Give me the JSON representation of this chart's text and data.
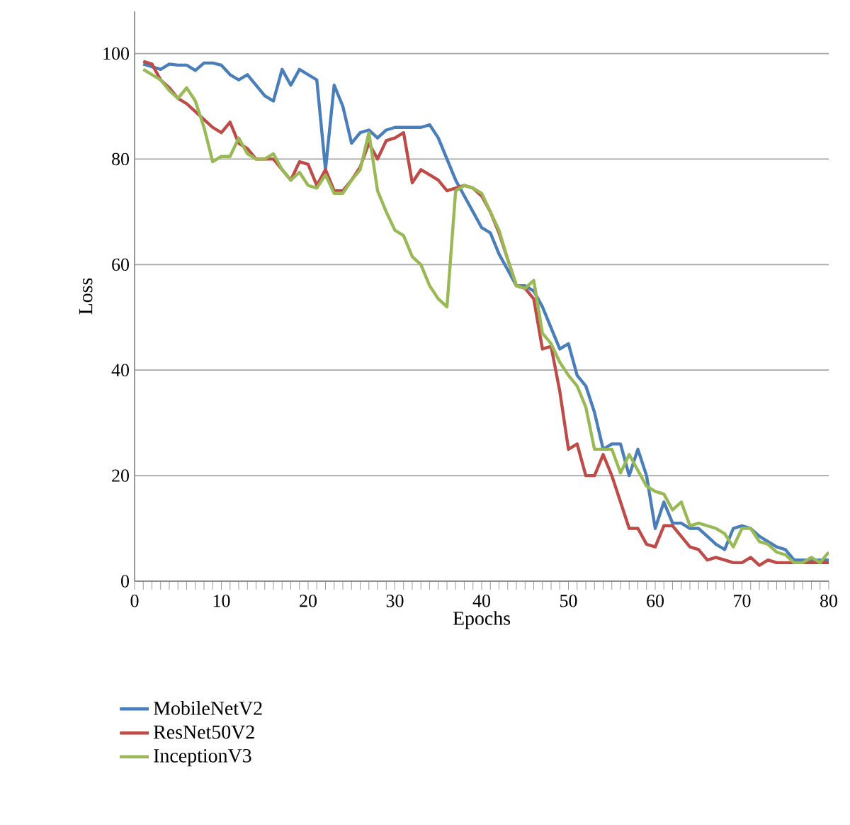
{
  "chart_data": {
    "type": "line",
    "xlabel": "Epochs",
    "ylabel": "Loss",
    "x": [
      1,
      2,
      3,
      4,
      5,
      6,
      7,
      8,
      9,
      10,
      11,
      12,
      13,
      14,
      15,
      16,
      17,
      18,
      19,
      20,
      21,
      22,
      23,
      24,
      25,
      26,
      27,
      28,
      29,
      30,
      31,
      32,
      33,
      34,
      35,
      36,
      37,
      38,
      39,
      40,
      41,
      42,
      43,
      44,
      45,
      46,
      47,
      48,
      49,
      50,
      51,
      52,
      53,
      54,
      55,
      56,
      57,
      58,
      59,
      60,
      61,
      62,
      63,
      64,
      65,
      66,
      67,
      68,
      69,
      70,
      71,
      72,
      73,
      74,
      75,
      76,
      77,
      78,
      79,
      80
    ],
    "series": [
      {
        "name": "MobileNetV2",
        "color": "#4a7ebb",
        "values": [
          98,
          97.5,
          97,
          98,
          97.8,
          97.8,
          96.8,
          98.2,
          98.2,
          97.8,
          96,
          95,
          96,
          94,
          92,
          91,
          97,
          94,
          97,
          96,
          95,
          78,
          94,
          90,
          83,
          85,
          85.5,
          84,
          85.5,
          86,
          86,
          86,
          86,
          86.5,
          84,
          80,
          76,
          73,
          70,
          67,
          66,
          62,
          59,
          56,
          56,
          55,
          52,
          48,
          44,
          45,
          39,
          37,
          32,
          25,
          26,
          26,
          20,
          25,
          20,
          10,
          15,
          11,
          11,
          10,
          10,
          8.5,
          7,
          6,
          10,
          10.5,
          10,
          8.5,
          7.5,
          6.5,
          6,
          4,
          4,
          4,
          4,
          4
        ]
      },
      {
        "name": "ResNet50V2",
        "color": "#be4b48",
        "values": [
          98.5,
          98,
          95,
          93.5,
          91.5,
          90.5,
          89,
          87.5,
          86,
          85,
          87,
          83,
          82,
          80,
          80,
          80,
          78,
          76,
          79.5,
          79,
          75,
          78,
          74,
          74,
          76,
          78.5,
          83,
          80,
          83.5,
          84,
          85,
          75.5,
          78,
          77,
          76,
          74,
          74.5,
          75,
          74.5,
          73,
          70,
          66,
          61,
          56,
          55.5,
          53.5,
          44,
          44.5,
          36,
          25,
          26,
          20,
          20,
          24,
          20,
          15,
          10,
          10,
          7,
          6.5,
          10.5,
          10.5,
          8.5,
          6.5,
          6,
          4,
          4.5,
          4,
          3.5,
          3.5,
          4.5,
          3,
          4,
          3.5,
          3.5,
          3.5,
          3.5,
          3.5,
          3.5,
          3.5
        ]
      },
      {
        "name": "InceptionV3",
        "color": "#98b954",
        "values": [
          97,
          96,
          95,
          93,
          91.5,
          93.5,
          91,
          86,
          79.5,
          80.5,
          80.5,
          84,
          81,
          80,
          80,
          81,
          78,
          76,
          77.5,
          75,
          74.5,
          77,
          73.5,
          73.5,
          76,
          78,
          85,
          74,
          70,
          66.5,
          65.5,
          61.5,
          60,
          56,
          53.5,
          52,
          74,
          75,
          74.5,
          73.5,
          70,
          66.5,
          61,
          56,
          55.5,
          57,
          47,
          45,
          41.5,
          39,
          37,
          33,
          25,
          25,
          25,
          20.5,
          24,
          21,
          18,
          17,
          16.5,
          13.5,
          15,
          10.5,
          11,
          10.5,
          10,
          9,
          6.5,
          10,
          10,
          7.5,
          7,
          5.5,
          5,
          3.5,
          3.5,
          4.5,
          3.5,
          5.5
        ]
      }
    ],
    "xlim": [
      0,
      80
    ],
    "xticks": [
      0,
      10,
      20,
      30,
      40,
      50,
      60,
      70,
      80
    ],
    "ylim": [
      0,
      108
    ],
    "yticks": [
      0,
      20,
      40,
      60,
      80,
      100
    ],
    "grid": "y",
    "legend": "bottom left",
    "line_style": "solid",
    "marker": "none"
  }
}
